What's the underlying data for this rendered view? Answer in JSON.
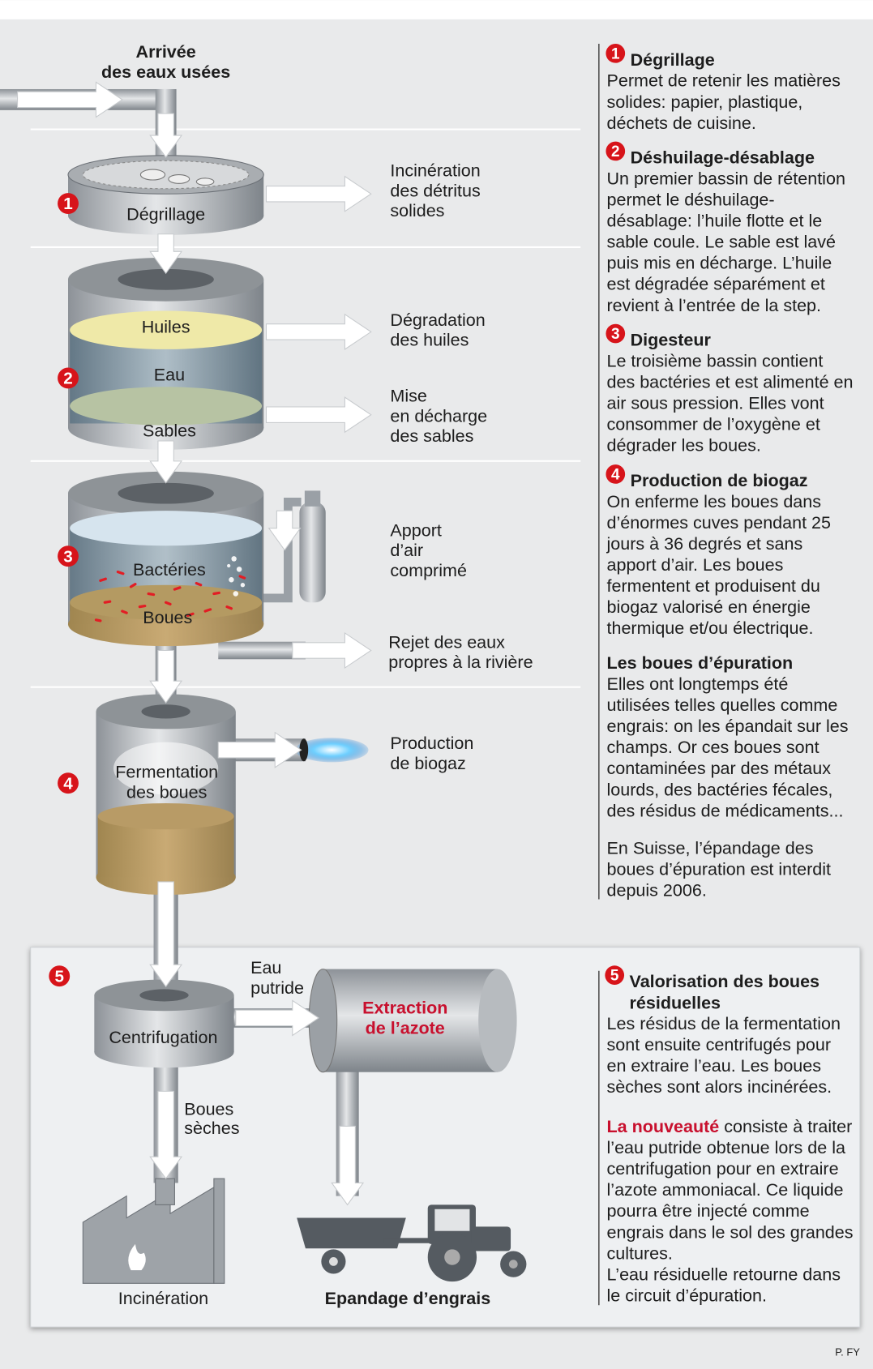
{
  "diagram": {
    "inlet": [
      "Arrivée",
      "des eaux usées"
    ],
    "step1": {
      "number": "1",
      "tank": "Dégrillage",
      "output": [
        "Incinération",
        "des détritus",
        "solides"
      ]
    },
    "step2": {
      "number": "2",
      "layers": [
        "Huiles",
        "Eau",
        "Sables"
      ],
      "outputs": [
        [
          "Dégradation",
          "des huiles"
        ],
        [
          "Mise",
          "en décharge",
          "des sables"
        ]
      ]
    },
    "step3": {
      "number": "3",
      "layers": [
        "Bactéries",
        "Boues"
      ],
      "outputs": [
        [
          "Apport",
          "d’air",
          "comprimé"
        ],
        [
          "Rejet des eaux",
          "propres à la rivière"
        ]
      ]
    },
    "step4": {
      "number": "4",
      "tank": [
        "Fermentation",
        "des boues"
      ],
      "output": [
        "Production",
        "de biogaz"
      ]
    },
    "step5": {
      "number": "5",
      "centrifuge": "Centrifugation",
      "water": [
        "Eau",
        "putride"
      ],
      "extraction": [
        "Extraction",
        "de l’azote"
      ],
      "dry": [
        "Boues",
        "sèches"
      ],
      "incineration": "Incinération",
      "spreading": "Epandage d’engrais"
    }
  },
  "sections": [
    {
      "number": "1",
      "title": [
        "Dégrillage"
      ],
      "lines": [
        "Permet de retenir les matières",
        "solides: papier, plastique,",
        "déchets de cuisine."
      ]
    },
    {
      "number": "2",
      "title": [
        "Déshuilage-désablage"
      ],
      "lines": [
        "Un premier bassin de rétention",
        "permet le déshuilage-",
        "désablage: l’huile flotte et le",
        "sable coule. Le sable est lavé",
        "puis mis en décharge. L’huile",
        "est dégradée séparément et",
        "revient à l’entrée de la step."
      ]
    },
    {
      "number": "3",
      "title": [
        "Digesteur"
      ],
      "lines": [
        "Le troisième bassin contient",
        "des bactéries et est alimenté en",
        "air sous pression. Elles vont",
        "consommer de l’oxygène et",
        "dégrader les boues."
      ]
    },
    {
      "number": "4",
      "title": [
        "Production de biogaz"
      ],
      "lines": [
        "On enferme les boues dans",
        "d’énormes cuves pendant 25",
        "jours à 36 degrés et sans",
        "apport d’air. Les boues",
        "fermentent et produisent du",
        "biogaz valorisé en énergie",
        "thermique et/ou électrique."
      ]
    }
  ],
  "sludge": {
    "title": "Les boues d’épuration",
    "lines": [
      "Elles ont  longtemps été",
      "utilisées telles quelles comme",
      "engrais: on les épandait sur les",
      "champs. Or ces boues sont",
      "contaminées par des métaux",
      "lourds, des bactéries fécales,",
      "des résidus de médicaments..."
    ],
    "note": [
      "En Suisse, l’épandage des",
      "boues d’épuration est interdit",
      "depuis 2006."
    ]
  },
  "valorisation": {
    "number": "5",
    "title": [
      "Valorisation des boues",
      "résiduelles"
    ],
    "lines": [
      "Les résidus de la fermentation",
      "sont ensuite centrifugés pour",
      "en extraire l’eau. Les boues",
      "sèches sont alors incinérées."
    ],
    "highlight": "La nouveauté",
    "highlight_rest": " consiste à traiter",
    "lines2": [
      "l’eau putride obtenue lors de la",
      "centrifugation pour en extraire",
      "l’azote ammoniacal. Ce liquide",
      "pourra être injecté comme",
      "engrais dans le sol des grandes",
      "cultures.",
      "L’eau résiduelle retourne dans",
      "le circuit d’épuration."
    ]
  },
  "credit": "P. FY"
}
